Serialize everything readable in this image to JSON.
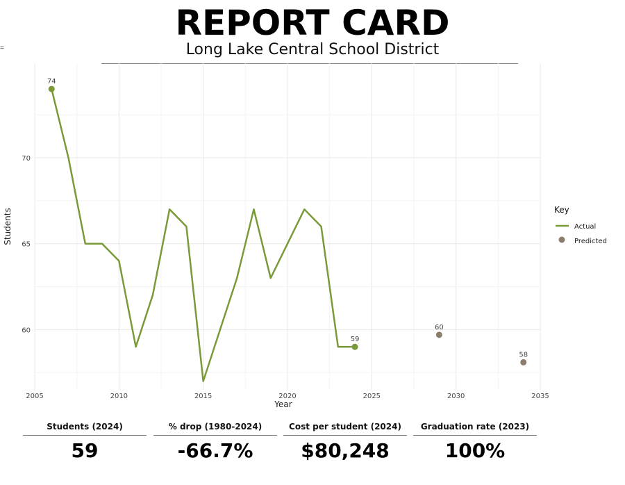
{
  "header": {
    "title": "REPORT CARD",
    "subtitle": "Long Lake Central School District",
    "corner_mark": "="
  },
  "chart_data": {
    "type": "line",
    "xlabel": "Year",
    "ylabel": "Students",
    "xlim": [
      2005,
      2035
    ],
    "ylim": [
      56.5,
      75.5
    ],
    "x_ticks": [
      2005,
      2010,
      2015,
      2020,
      2025,
      2030,
      2035
    ],
    "y_ticks": [
      60,
      65,
      70
    ],
    "grid": true,
    "legend": {
      "title": "Key",
      "placement": "right"
    },
    "series": [
      {
        "name": "Actual",
        "style": "line",
        "color": "#7a9a3a",
        "x": [
          2006,
          2007,
          2008,
          2009,
          2010,
          2011,
          2012,
          2013,
          2014,
          2015,
          2016,
          2017,
          2018,
          2019,
          2020,
          2021,
          2022,
          2023,
          2024
        ],
        "y": [
          74,
          70,
          65,
          65,
          64,
          59,
          62,
          67,
          66,
          57,
          60,
          63,
          67,
          63,
          65,
          67,
          66,
          59,
          59
        ]
      },
      {
        "name": "Predicted",
        "style": "points",
        "color": "#8b7d6b",
        "x": [
          2029,
          2034
        ],
        "y": [
          59.7,
          58.1
        ]
      }
    ],
    "annotations": [
      {
        "x": 2006,
        "y": 74,
        "text": "74",
        "color": "#7a9a3a"
      },
      {
        "x": 2024,
        "y": 59,
        "text": "59",
        "color": "#7a9a3a"
      },
      {
        "x": 2029,
        "y": 59.7,
        "text": "60",
        "color": "#8b7d6b"
      },
      {
        "x": 2034,
        "y": 58.1,
        "text": "58",
        "color": "#8b7d6b"
      }
    ]
  },
  "stats": [
    {
      "label": "Students (2024)",
      "value": "59"
    },
    {
      "label": "% drop (1980-2024)",
      "value": "-66.7%"
    },
    {
      "label": "Cost per student (2024)",
      "value": "$80,248"
    },
    {
      "label": "Graduation rate (2023)",
      "value": "100%"
    }
  ]
}
